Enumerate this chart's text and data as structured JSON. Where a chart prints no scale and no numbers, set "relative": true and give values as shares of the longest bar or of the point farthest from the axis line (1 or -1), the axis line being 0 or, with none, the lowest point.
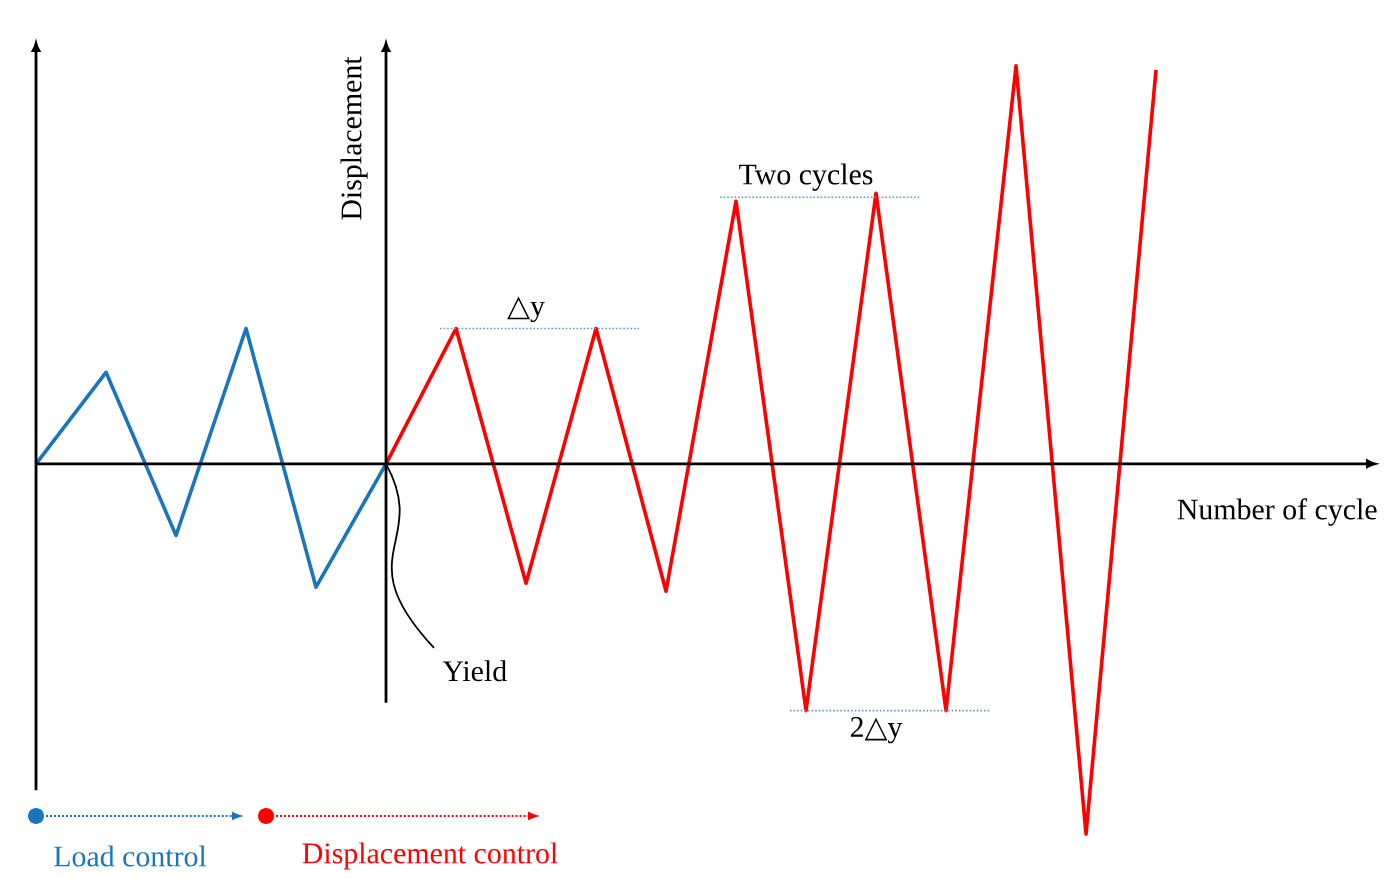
{
  "chart_data": {
    "type": "line",
    "relative": true,
    "xlabel": "Number of cycle",
    "ylabel": "Displacement",
    "legend": "bottom left",
    "categories": [
      null,
      null,
      null,
      null,
      null,
      null,
      null,
      null,
      null,
      null,
      null,
      null,
      null,
      null,
      null,
      null,
      null
    ],
    "series": [
      {
        "name": "Load control",
        "color": "#1b75bb",
        "values": [
          0,
          0.23,
          -0.18,
          0.34,
          -0.31,
          0,
          null,
          null,
          null,
          null,
          null,
          null,
          null,
          null,
          null,
          null,
          null
        ]
      },
      {
        "name": "Displacement control",
        "color": "#ff0000",
        "values": [
          null,
          null,
          null,
          null,
          null,
          0,
          0.34,
          -0.3,
          0.34,
          -0.32,
          0.66,
          -0.62,
          0.68,
          -0.62,
          1.0,
          -0.93,
          0.99
        ]
      }
    ],
    "ref_lines": [
      {
        "axis": "y",
        "value": 0.34,
        "label": "△y",
        "color": "#5b9bd5",
        "line_style": "dotted"
      },
      {
        "axis": "y",
        "value": 0.67,
        "label": "Two cycles",
        "color": "#5b9bd5",
        "line_style": "dotted"
      },
      {
        "axis": "y",
        "value": -0.62,
        "label": "2△y",
        "color": "#5b9bd5",
        "line_style": "dotted"
      }
    ],
    "annotations": [
      "Yield"
    ]
  }
}
